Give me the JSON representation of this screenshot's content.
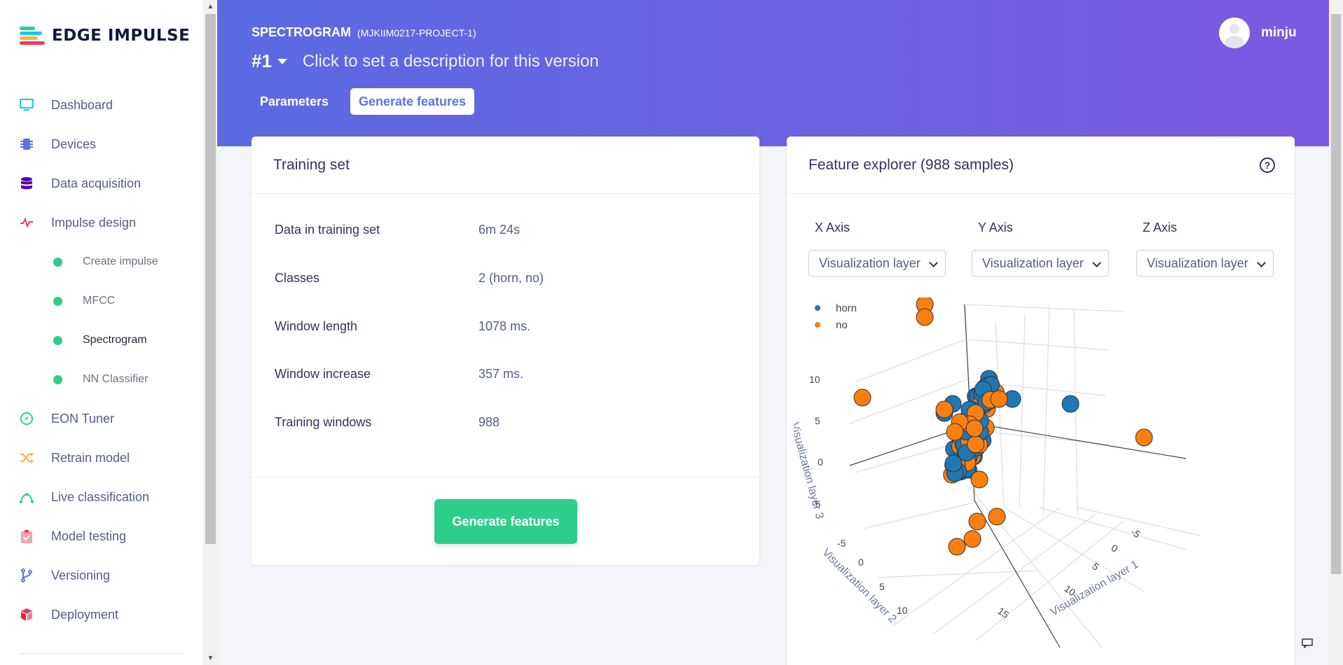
{
  "app": {
    "brand": "EDGE IMPULSE"
  },
  "sidebar": {
    "items": [
      {
        "label": "Dashboard",
        "icon": "monitor-icon",
        "color": "#11cdef"
      },
      {
        "label": "Devices",
        "icon": "chip-icon",
        "color": "#5e72e4"
      },
      {
        "label": "Data acquisition",
        "icon": "database-icon",
        "color": "#5603ad"
      },
      {
        "label": "Impulse design",
        "icon": "pulse-icon",
        "color": "#f5365c"
      },
      {
        "label": "Create impulse",
        "icon": "dot-icon",
        "color": "#2dce89"
      },
      {
        "label": "MFCC",
        "icon": "dot-icon",
        "color": "#2dce89"
      },
      {
        "label": "Spectrogram",
        "icon": "dot-icon",
        "color": "#2dce89"
      },
      {
        "label": "NN Classifier",
        "icon": "dot-icon",
        "color": "#2dce89"
      },
      {
        "label": "EON Tuner",
        "icon": "compass-icon",
        "color": "#2dce89"
      },
      {
        "label": "Retrain model",
        "icon": "shuffle-icon",
        "color": "#fbb140"
      },
      {
        "label": "Live classification",
        "icon": "curve-icon",
        "color": "#2dce89"
      },
      {
        "label": "Model testing",
        "icon": "clipboard-check-icon",
        "color": "#f3a4b5"
      },
      {
        "label": "Versioning",
        "icon": "git-branch-icon",
        "color": "#5e72e4"
      },
      {
        "label": "Deployment",
        "icon": "cube-icon",
        "color": "#f5365c"
      }
    ]
  },
  "header": {
    "title": "SPECTROGRAM",
    "project": "(MJKIIM0217-PROJECT-1)",
    "version": "#1",
    "description": "Click to set a description for this version",
    "tabs": [
      "Parameters",
      "Generate features"
    ],
    "username": "minju"
  },
  "training": {
    "title": "Training set",
    "rows": [
      {
        "key": "Data in training set",
        "value": "6m 24s"
      },
      {
        "key": "Classes",
        "value": "2 (horn, no)"
      },
      {
        "key": "Window length",
        "value": "1078 ms."
      },
      {
        "key": "Window increase",
        "value": "357 ms."
      },
      {
        "key": "Training windows",
        "value": "988"
      }
    ],
    "button": "Generate features"
  },
  "explorer": {
    "title": "Feature explorer (988 samples)",
    "help": "?",
    "axes": [
      {
        "label": "X Axis",
        "value": "Visualization layer"
      },
      {
        "label": "Y Axis",
        "value": "Visualization layer"
      },
      {
        "label": "Z Axis",
        "value": "Visualization layer"
      }
    ]
  },
  "chart_data": {
    "type": "scatter",
    "legend": [
      {
        "name": "horn",
        "color": "#1f77b4"
      },
      {
        "name": "no",
        "color": "#ff7f0e"
      }
    ],
    "legend_position": "top-left",
    "z_ticks": [
      "10",
      "5",
      "0",
      "-5"
    ],
    "y_ticks": [
      "-5",
      "0",
      "5",
      "10"
    ],
    "x_ticks": [
      "-5",
      "0",
      "5",
      "10",
      "15"
    ],
    "x_label": "Visualization layer 1",
    "y_label": "Visualization layer 2",
    "z_label": "Visualization layer 3",
    "grid": true
  }
}
